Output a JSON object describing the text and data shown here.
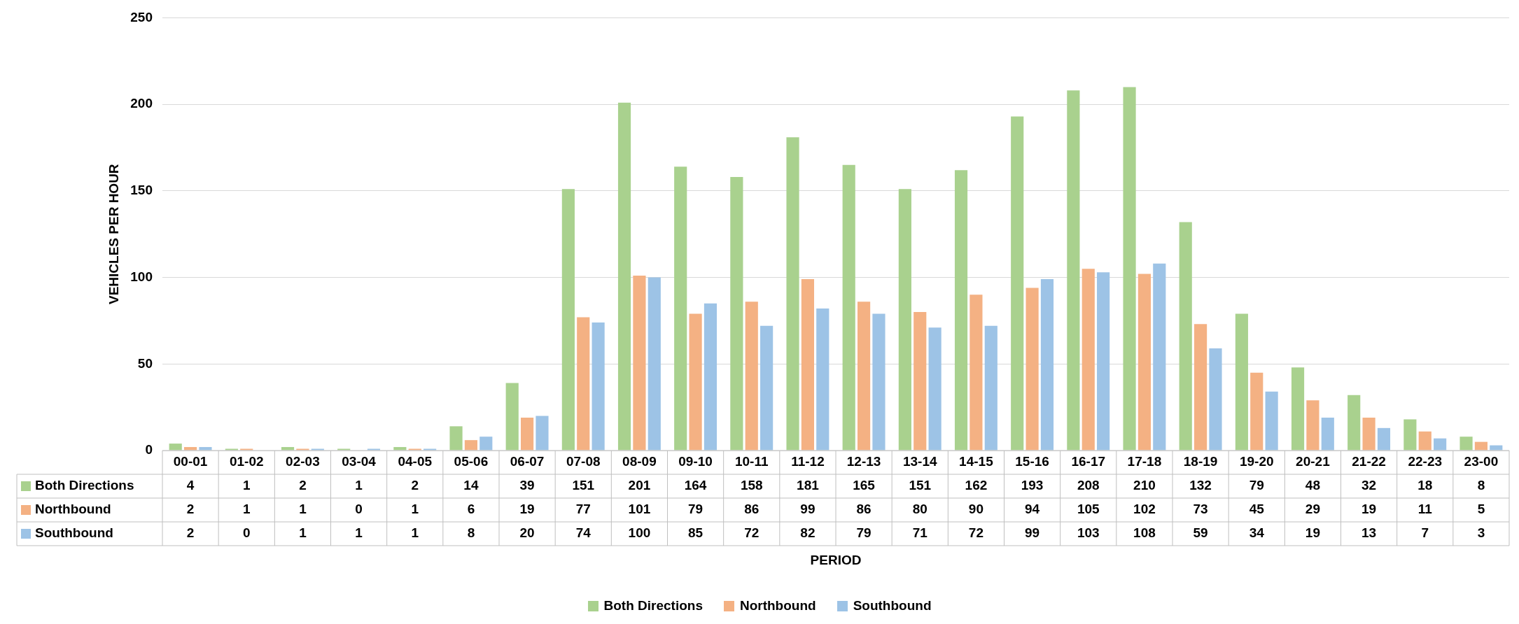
{
  "chart_data": {
    "type": "bar",
    "annotations": [
      "PERIOD"
    ],
    "ylabel": "VEHICLES PER HOUR",
    "categories": [
      "00-01",
      "01-02",
      "02-03",
      "03-04",
      "04-05",
      "05-06",
      "06-07",
      "07-08",
      "08-09",
      "09-10",
      "10-11",
      "11-12",
      "12-13",
      "13-14",
      "14-15",
      "15-16",
      "16-17",
      "17-18",
      "18-19",
      "19-20",
      "20-21",
      "21-22",
      "22-23",
      "23-00"
    ],
    "series": [
      {
        "name": "Both Directions",
        "color": "#a9d18e",
        "values": [
          4,
          1,
          2,
          1,
          2,
          14,
          39,
          151,
          201,
          164,
          158,
          181,
          165,
          151,
          162,
          193,
          208,
          210,
          132,
          79,
          48,
          32,
          18,
          8
        ]
      },
      {
        "name": "Northbound",
        "color": "#f4b183",
        "values": [
          2,
          1,
          1,
          0,
          1,
          6,
          19,
          77,
          101,
          79,
          86,
          99,
          86,
          80,
          90,
          94,
          105,
          102,
          73,
          45,
          29,
          19,
          11,
          5
        ]
      },
      {
        "name": "Southbound",
        "color": "#9dc3e6",
        "values": [
          2,
          0,
          1,
          1,
          1,
          8,
          20,
          74,
          100,
          85,
          72,
          82,
          79,
          71,
          72,
          99,
          103,
          108,
          59,
          34,
          19,
          13,
          7,
          3
        ]
      }
    ],
    "ylim": [
      0,
      250
    ],
    "yticks": [
      0,
      50,
      100,
      150,
      200,
      250
    ],
    "grid": "y",
    "legend": "bottom",
    "data_labels": true
  }
}
